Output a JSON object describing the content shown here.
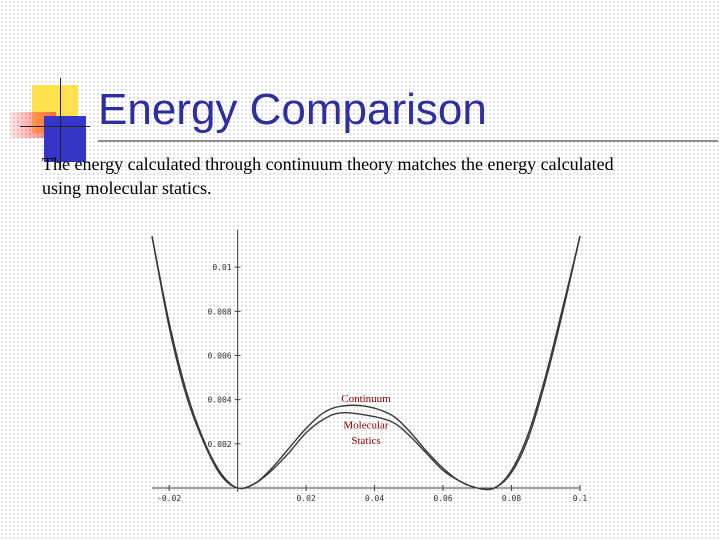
{
  "slide": {
    "title": "Energy Comparison",
    "body": "The energy calculated through continuum theory matches the energy calculated using molecular statics.",
    "title_color": "#2e2e9e"
  },
  "chart_data": {
    "type": "line",
    "title": "",
    "xlabel": "",
    "ylabel": "",
    "xlim": [
      -0.025,
      0.1
    ],
    "ylim": [
      0,
      0.0115
    ],
    "x_ticks": [
      "-0.02",
      "0.02",
      "0.04",
      "0.06",
      "0.08",
      "0.1"
    ],
    "y_ticks": [
      "0.002",
      "0.004",
      "0.006",
      "0.008",
      "0.01"
    ],
    "grid": false,
    "series": [
      {
        "name": "Continuum",
        "x": [
          -0.025,
          -0.02,
          -0.015,
          -0.01,
          -0.005,
          0,
          0.005,
          0.01,
          0.015,
          0.02,
          0.025,
          0.03,
          0.0375,
          0.045,
          0.05,
          0.055,
          0.06,
          0.065,
          0.07,
          0.075,
          0.08,
          0.085,
          0.09,
          0.095,
          0.1
        ],
        "y": [
          0.0114,
          0.0075,
          0.0044,
          0.0022,
          0.0007,
          0.0,
          0.0002,
          0.0009,
          0.0018,
          0.0027,
          0.0034,
          0.0037,
          0.0037,
          0.0033,
          0.0026,
          0.0017,
          0.0009,
          0.0003,
          0.0,
          0.0,
          0.0008,
          0.0025,
          0.0051,
          0.0082,
          0.0114
        ]
      },
      {
        "name": "Molecular Statics",
        "x": [
          -0.025,
          -0.02,
          -0.015,
          -0.01,
          -0.005,
          0,
          0.005,
          0.01,
          0.015,
          0.02,
          0.025,
          0.03,
          0.0375,
          0.045,
          0.05,
          0.055,
          0.06,
          0.065,
          0.07,
          0.075,
          0.08,
          0.085,
          0.09,
          0.095,
          0.1
        ],
        "y": [
          0.0114,
          0.0073,
          0.0042,
          0.0021,
          0.0006,
          0.0,
          0.0002,
          0.0008,
          0.0016,
          0.0025,
          0.0031,
          0.0034,
          0.0033,
          0.003,
          0.0024,
          0.0016,
          0.0008,
          0.0003,
          0.0,
          0.0,
          0.0007,
          0.0023,
          0.0049,
          0.008,
          0.0114
        ]
      }
    ],
    "annotations": [
      {
        "text": "Continuum",
        "x": 0.0375,
        "y": 0.0039
      },
      {
        "text": "Molecular",
        "x": 0.0375,
        "y": 0.0027
      },
      {
        "text": "Statics",
        "x": 0.0375,
        "y": 0.002
      }
    ]
  }
}
